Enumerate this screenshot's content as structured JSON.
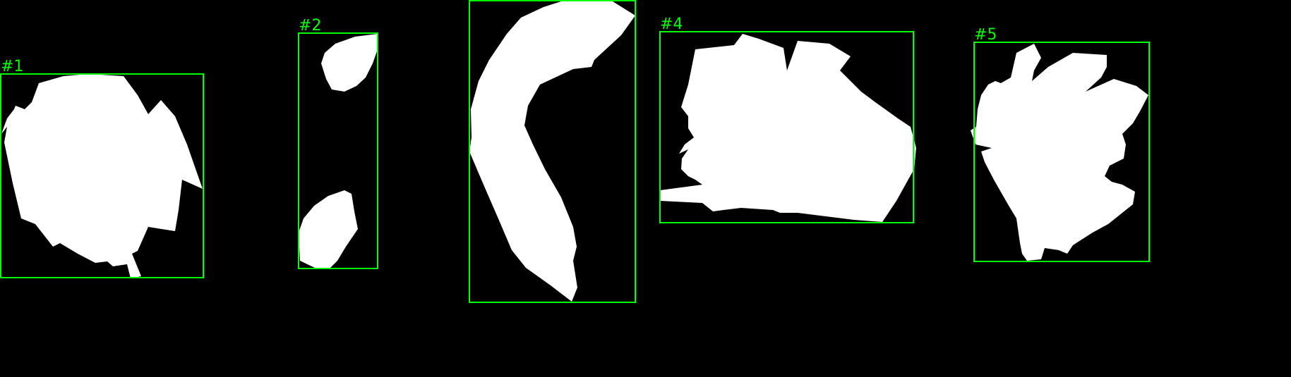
{
  "colors": {
    "background": "#000000",
    "mask": "#ffffff",
    "box": "#00ff00"
  },
  "regions": [
    {
      "label": "#1",
      "shape": "roundish-irregular-blob"
    },
    {
      "label": "#2",
      "shape": "two-small-separate-blobs"
    },
    {
      "label": "",
      "shape": "curved-band"
    },
    {
      "label": "#4",
      "shape": "wide-irregular-blob"
    },
    {
      "label": "#5",
      "shape": "spiky-irregular-blob"
    }
  ]
}
